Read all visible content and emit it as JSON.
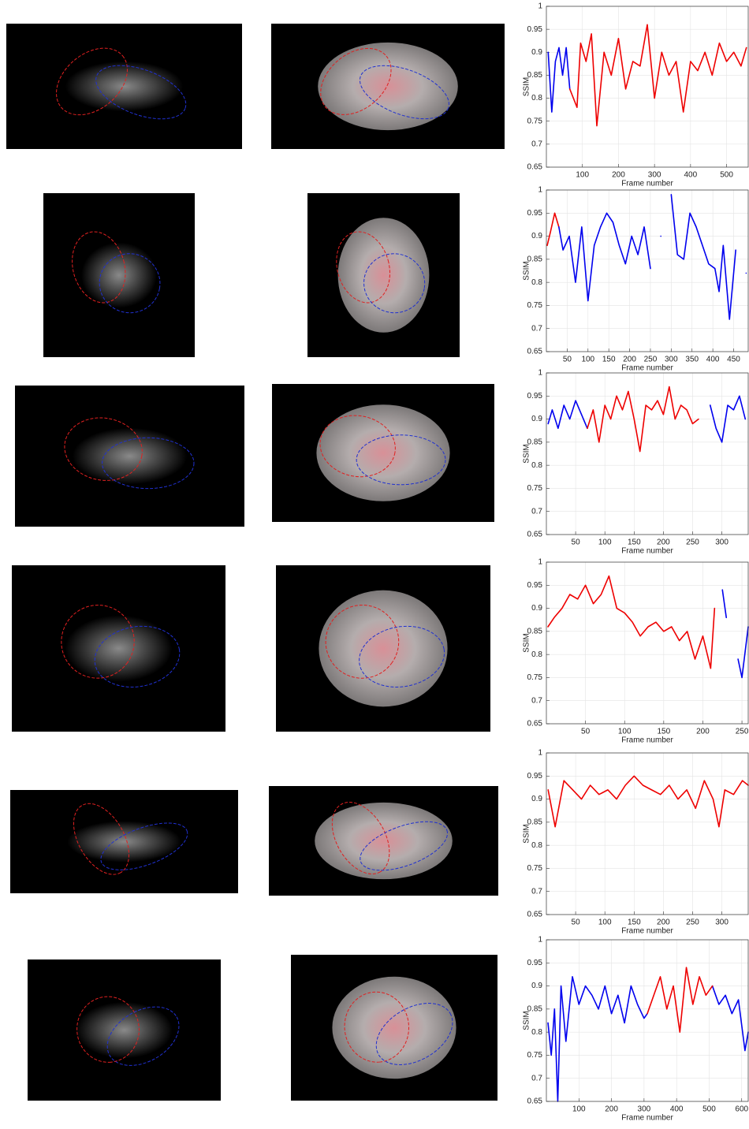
{
  "chart_data": [
    {
      "type": "line",
      "ylabel": "SSIM",
      "xlabel": "Frame number",
      "xlim": [
        0,
        560
      ],
      "xticks": [
        100,
        200,
        300,
        400,
        500
      ],
      "ylim": [
        0.65,
        1
      ],
      "yticks": [
        0.65,
        0.7,
        0.75,
        0.8,
        0.85,
        0.9,
        0.95,
        1
      ],
      "grid": true,
      "x": [
        5,
        15,
        25,
        35,
        45,
        55,
        65,
        75,
        85,
        95,
        110,
        125,
        140,
        160,
        180,
        200,
        220,
        240,
        260,
        280,
        300,
        320,
        340,
        360,
        380,
        400,
        420,
        440,
        460,
        480,
        500,
        520,
        540,
        555
      ],
      "series": [
        {
          "color": "#0000ee",
          "values": [
            0.9,
            0.77,
            0.88,
            0.91,
            0.85,
            0.91,
            0.82,
            null,
            null,
            null,
            null,
            null,
            null,
            null,
            null,
            null,
            null,
            null,
            null,
            null,
            null,
            null,
            null,
            null,
            null,
            null,
            null,
            null,
            null,
            null,
            null,
            null,
            null,
            null
          ]
        },
        {
          "color": "#ee0000",
          "values": [
            null,
            null,
            null,
            null,
            null,
            null,
            0.82,
            0.8,
            0.78,
            0.92,
            0.88,
            0.94,
            0.74,
            0.9,
            0.85,
            0.93,
            0.82,
            0.88,
            0.87,
            0.96,
            0.8,
            0.9,
            0.85,
            0.88,
            0.77,
            0.88,
            0.86,
            0.9,
            0.85,
            0.92,
            0.88,
            0.9,
            0.87,
            0.91
          ]
        }
      ]
    },
    {
      "type": "line",
      "ylabel": "SSIM",
      "xlabel": "Frame number",
      "xlim": [
        0,
        485
      ],
      "xticks": [
        50,
        100,
        150,
        200,
        250,
        300,
        350,
        400,
        450
      ],
      "ylim": [
        0.65,
        1
      ],
      "yticks": [
        0.65,
        0.7,
        0.75,
        0.8,
        0.85,
        0.9,
        0.95,
        1
      ],
      "grid": true,
      "x": [
        2,
        10,
        20,
        30,
        40,
        55,
        70,
        85,
        100,
        115,
        130,
        145,
        160,
        175,
        190,
        205,
        220,
        235,
        250,
        260,
        275,
        290,
        300,
        315,
        330,
        345,
        360,
        375,
        390,
        405,
        415,
        425,
        440,
        455,
        470,
        480
      ],
      "series": [
        {
          "color": "#ee0000",
          "values": [
            0.88,
            0.91,
            0.95,
            0.92,
            null,
            null,
            null,
            null,
            null,
            null,
            null,
            null,
            null,
            null,
            null,
            null,
            null,
            null,
            null,
            null,
            null,
            null,
            null,
            null,
            null,
            null,
            null,
            null,
            null,
            null,
            null,
            null,
            null,
            null,
            null,
            null
          ]
        },
        {
          "color": "#0000ee",
          "values": [
            null,
            null,
            null,
            0.92,
            0.87,
            0.9,
            0.8,
            0.92,
            0.76,
            0.88,
            0.92,
            0.95,
            0.93,
            0.88,
            0.84,
            0.9,
            0.86,
            0.92,
            0.83,
            null,
            0.9,
            null,
            0.99,
            0.86,
            0.85,
            0.95,
            0.92,
            0.88,
            0.84,
            0.83,
            0.78,
            0.88,
            0.72,
            0.87,
            null,
            0.82
          ]
        }
      ]
    },
    {
      "type": "line",
      "ylabel": "SSIM",
      "xlabel": "Frame number",
      "xlim": [
        0,
        345
      ],
      "xticks": [
        50,
        100,
        150,
        200,
        250,
        300
      ],
      "ylim": [
        0.65,
        1
      ],
      "yticks": [
        0.65,
        0.7,
        0.75,
        0.8,
        0.85,
        0.9,
        0.95,
        1
      ],
      "grid": true,
      "x": [
        3,
        10,
        20,
        30,
        40,
        50,
        60,
        70,
        80,
        90,
        100,
        110,
        120,
        130,
        140,
        150,
        160,
        170,
        180,
        190,
        200,
        210,
        220,
        230,
        240,
        250,
        260,
        270,
        280,
        290,
        300,
        310,
        320,
        330,
        340
      ],
      "series": [
        {
          "color": "#0000ee",
          "values": [
            0.89,
            0.92,
            0.88,
            0.93,
            0.9,
            0.94,
            0.91,
            0.88,
            null,
            null,
            null,
            null,
            null,
            null,
            null,
            null,
            null,
            null,
            null,
            null,
            null,
            null,
            null,
            null,
            null,
            null,
            null,
            null,
            0.93,
            0.88,
            0.85,
            0.93,
            0.92,
            0.95,
            0.9
          ]
        },
        {
          "color": "#ee0000",
          "values": [
            null,
            null,
            null,
            null,
            null,
            null,
            null,
            0.88,
            0.92,
            0.85,
            0.93,
            0.9,
            0.95,
            0.92,
            0.96,
            0.9,
            0.83,
            0.93,
            0.92,
            0.94,
            0.91,
            0.97,
            0.9,
            0.93,
            0.92,
            0.89,
            0.9,
            null,
            null,
            null,
            null,
            null,
            null,
            null,
            null
          ]
        }
      ]
    },
    {
      "type": "line",
      "ylabel": "SSIM",
      "xlabel": "Frame number",
      "xlim": [
        0,
        258
      ],
      "xticks": [
        50,
        100,
        150,
        200,
        250
      ],
      "ylim": [
        0.65,
        1
      ],
      "yticks": [
        0.65,
        0.7,
        0.75,
        0.8,
        0.85,
        0.9,
        0.95,
        1
      ],
      "grid": true,
      "x": [
        2,
        10,
        20,
        30,
        40,
        50,
        60,
        70,
        80,
        90,
        100,
        110,
        120,
        130,
        140,
        150,
        160,
        170,
        180,
        190,
        200,
        210,
        215,
        225,
        230,
        235,
        245,
        250,
        258
      ],
      "series": [
        {
          "color": "#ee0000",
          "values": [
            0.86,
            0.88,
            0.9,
            0.93,
            0.92,
            0.95,
            0.91,
            0.93,
            0.97,
            0.9,
            0.89,
            0.87,
            0.84,
            0.86,
            0.87,
            0.85,
            0.86,
            0.83,
            0.85,
            0.79,
            0.84,
            0.77,
            0.9,
            null,
            null,
            null,
            null,
            null,
            null
          ]
        },
        {
          "color": "#0000ee",
          "values": [
            null,
            null,
            null,
            null,
            null,
            null,
            null,
            null,
            null,
            null,
            null,
            null,
            null,
            null,
            null,
            null,
            null,
            null,
            null,
            null,
            null,
            null,
            null,
            0.94,
            0.88,
            null,
            0.79,
            0.75,
            0.86
          ]
        }
      ]
    },
    {
      "type": "line",
      "ylabel": "SSIM",
      "xlabel": "Frame number",
      "xlim": [
        0,
        345
      ],
      "xticks": [
        50,
        100,
        150,
        200,
        250,
        300
      ],
      "ylim": [
        0.65,
        1
      ],
      "yticks": [
        0.65,
        0.7,
        0.75,
        0.8,
        0.85,
        0.9,
        0.95,
        1
      ],
      "grid": true,
      "x": [
        3,
        15,
        30,
        45,
        60,
        75,
        90,
        105,
        120,
        135,
        150,
        165,
        180,
        195,
        210,
        225,
        240,
        255,
        270,
        285,
        295,
        305,
        320,
        335,
        345
      ],
      "series": [
        {
          "color": "#ee0000",
          "values": [
            0.92,
            0.84,
            0.94,
            0.92,
            0.9,
            0.93,
            0.91,
            0.92,
            0.9,
            0.93,
            0.95,
            0.93,
            0.92,
            0.91,
            0.93,
            0.9,
            0.92,
            0.88,
            0.94,
            0.9,
            0.84,
            0.92,
            0.91,
            0.94,
            0.93
          ]
        }
      ]
    },
    {
      "type": "line",
      "ylabel": "SSIM",
      "xlabel": "Frame number",
      "xlim": [
        0,
        620
      ],
      "xticks": [
        100,
        200,
        300,
        400,
        500,
        600
      ],
      "ylim": [
        0.65,
        1
      ],
      "yticks": [
        0.65,
        0.7,
        0.75,
        0.8,
        0.85,
        0.9,
        0.95,
        1
      ],
      "grid": true,
      "x": [
        5,
        15,
        25,
        35,
        45,
        60,
        80,
        100,
        120,
        140,
        160,
        180,
        200,
        220,
        240,
        260,
        280,
        300,
        310,
        330,
        350,
        370,
        390,
        410,
        430,
        450,
        470,
        490,
        510,
        530,
        550,
        570,
        590,
        610,
        620
      ],
      "series": [
        {
          "color": "#0000ee",
          "values": [
            0.82,
            0.75,
            0.85,
            0.65,
            0.9,
            0.78,
            0.92,
            0.86,
            0.9,
            0.88,
            0.85,
            0.9,
            0.84,
            0.88,
            0.82,
            0.9,
            0.86,
            0.83,
            0.84,
            null,
            null,
            null,
            null,
            null,
            null,
            null,
            null,
            null,
            0.9,
            0.86,
            0.88,
            0.84,
            0.87,
            0.76,
            0.8
          ]
        },
        {
          "color": "#ee0000",
          "values": [
            null,
            null,
            null,
            null,
            null,
            null,
            null,
            null,
            null,
            null,
            null,
            null,
            null,
            null,
            null,
            null,
            null,
            null,
            0.84,
            0.88,
            0.92,
            0.85,
            0.9,
            0.8,
            0.94,
            0.86,
            0.92,
            0.88,
            0.9,
            null,
            null,
            null,
            null,
            null,
            null
          ]
        }
      ]
    }
  ]
}
